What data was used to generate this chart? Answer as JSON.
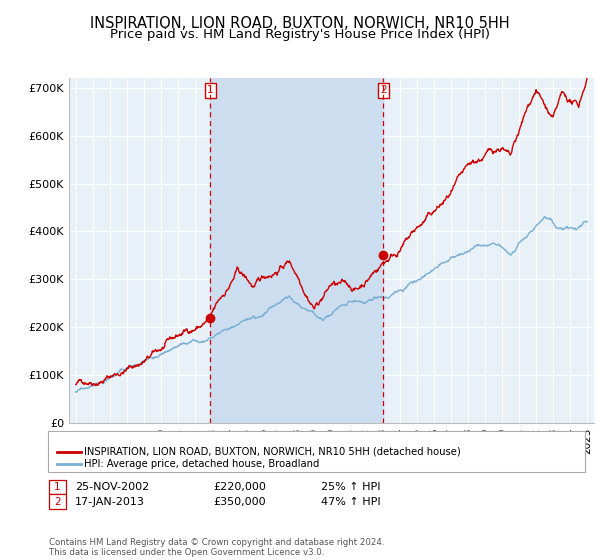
{
  "title": "INSPIRATION, LION ROAD, BUXTON, NORWICH, NR10 5HH",
  "subtitle": "Price paid vs. HM Land Registry's House Price Index (HPI)",
  "ylim": [
    0,
    720000
  ],
  "yticks": [
    0,
    100000,
    200000,
    300000,
    400000,
    500000,
    600000,
    700000
  ],
  "ytick_labels": [
    "£0",
    "£100K",
    "£200K",
    "£300K",
    "£400K",
    "£500K",
    "£600K",
    "£700K"
  ],
  "plot_bg_color": "#e8f0f8",
  "shade_color": "#ccddf0",
  "grid_color": "#ffffff",
  "red_color": "#cc0000",
  "blue_color": "#7bafd4",
  "sale1_x": 2002.9,
  "sale1_y": 220000,
  "sale1_label": "1",
  "sale2_x": 2013.05,
  "sale2_y": 350000,
  "sale2_label": "2",
  "legend_entry1": "INSPIRATION, LION ROAD, BUXTON, NORWICH, NR10 5HH (detached house)",
  "legend_entry2": "HPI: Average price, detached house, Broadland",
  "table_row1": [
    "1",
    "25-NOV-2002",
    "£220,000",
    "25% ↑ HPI"
  ],
  "table_row2": [
    "2",
    "17-JAN-2013",
    "£350,000",
    "47% ↑ HPI"
  ],
  "copyright": "Contains HM Land Registry data © Crown copyright and database right 2024.\nThis data is licensed under the Open Government Licence v3.0.",
  "title_fontsize": 10.5,
  "subtitle_fontsize": 9.5,
  "tick_fontsize": 8,
  "xlim_start": 1994.6,
  "xlim_end": 2025.4
}
